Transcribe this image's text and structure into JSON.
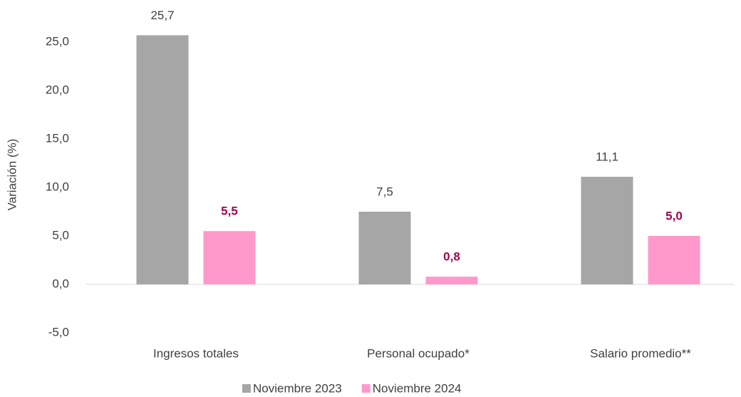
{
  "chart_data": {
    "type": "bar",
    "y_label": "Variación (%)",
    "categories": [
      "Ingresos totales",
      "Personal ocupado*",
      "Salario promedio**"
    ],
    "series": [
      {
        "name": "Noviembre 2023",
        "color": "#a6a6a6",
        "label_color": "#404040",
        "label_bold": false,
        "values": [
          25.7,
          7.5,
          11.1
        ],
        "value_labels": [
          "25,7",
          "7,5",
          "11,1"
        ]
      },
      {
        "name": "Noviembre 2024",
        "color": "#ff99cc",
        "label_color": "#a50050",
        "label_bold": true,
        "values": [
          5.5,
          0.8,
          5.0
        ],
        "value_labels": [
          "5,5",
          "0,8",
          "5,0"
        ]
      }
    ],
    "ylim": [
      -5,
      30
    ],
    "yticks": [
      {
        "value": -5,
        "label": "-5,0"
      },
      {
        "value": 0,
        "label": "0,0"
      },
      {
        "value": 5,
        "label": "5,0"
      },
      {
        "value": 10,
        "label": "10,0"
      },
      {
        "value": 15,
        "label": "15,0"
      },
      {
        "value": 20,
        "label": "20,0"
      },
      {
        "value": 25,
        "label": "25,0"
      }
    ],
    "grid": false,
    "legend": "bottom"
  }
}
